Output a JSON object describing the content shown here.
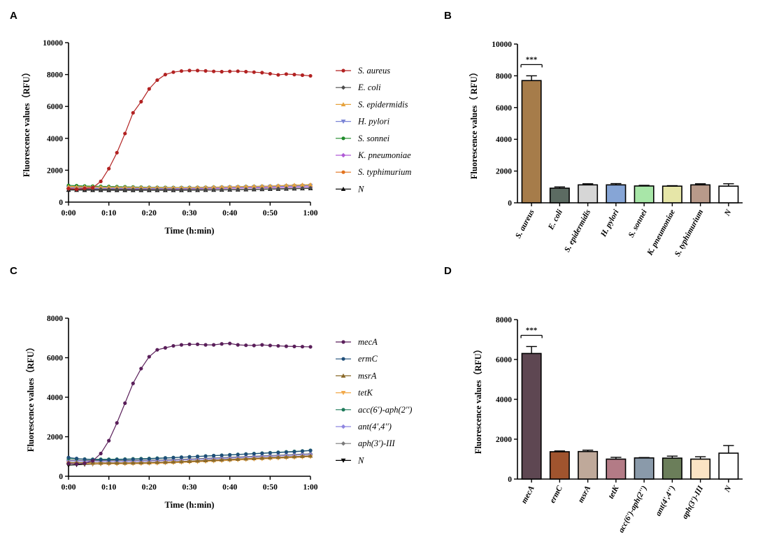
{
  "chart_data": [
    {
      "panel": "A",
      "type": "line",
      "xlabel": "Time (h:min)",
      "ylabel": "Fluorescence values（RFU）",
      "x_ticks": [
        "0:00",
        "0:10",
        "0:20",
        "0:30",
        "0:40",
        "0:50",
        "1:00"
      ],
      "xlim": [
        0,
        60
      ],
      "ylim": [
        0,
        10000
      ],
      "y_ticks": [
        0,
        2000,
        4000,
        6000,
        8000,
        10000
      ],
      "series": [
        {
          "name": "S. aureus",
          "color": "#b22222",
          "marker": "circle",
          "values": [
            850,
            800,
            860,
            900,
            1300,
            2100,
            3100,
            4300,
            5600,
            6300,
            7100,
            7650,
            8000,
            8150,
            8220,
            8250,
            8250,
            8230,
            8200,
            8180,
            8200,
            8210,
            8180,
            8150,
            8120,
            8050,
            7980,
            8030,
            8000,
            7960,
            7920
          ]
        },
        {
          "name": "E. coli",
          "color": "#4d4d4d",
          "marker": "diamond",
          "values": [
            820,
            815,
            810,
            805,
            800,
            795,
            790,
            788,
            785,
            783,
            780,
            779,
            778,
            777,
            776,
            776,
            777,
            778,
            780,
            782,
            785,
            790,
            800,
            810,
            820,
            830,
            840,
            850,
            860,
            870,
            880
          ]
        },
        {
          "name": "S. epidermidis",
          "color": "#e6a23c",
          "marker": "triangle-up",
          "values": [
            960,
            950,
            945,
            940,
            935,
            930,
            925,
            920,
            915,
            912,
            910,
            908,
            906,
            905,
            905,
            910,
            920,
            930,
            940,
            950,
            960,
            970,
            980,
            990,
            1000,
            1010,
            1030,
            1050,
            1070,
            1080,
            1090
          ]
        },
        {
          "name": "H. pylori",
          "color": "#7b84d6",
          "marker": "triangle-down",
          "values": [
            900,
            895,
            890,
            885,
            880,
            875,
            870,
            868,
            866,
            864,
            862,
            860,
            860,
            862,
            865,
            870,
            878,
            886,
            895,
            905,
            915,
            925,
            935,
            945,
            955,
            965,
            980,
            995,
            1010,
            1020,
            1030
          ]
        },
        {
          "name": "S. sonnei",
          "color": "#1f8a2a",
          "marker": "circle",
          "values": [
            1050,
            1030,
            1010,
            1000,
            990,
            980,
            970,
            960,
            950,
            940,
            930,
            925,
            920,
            918,
            918,
            920,
            925,
            930,
            938,
            946,
            955,
            965,
            975,
            985,
            995,
            1005,
            1015,
            1025,
            1035,
            1045,
            1055
          ]
        },
        {
          "name": "K. pneumoniae",
          "color": "#b05bd6",
          "marker": "diamond",
          "values": [
            870,
            865,
            860,
            855,
            850,
            845,
            840,
            836,
            833,
            830,
            828,
            826,
            825,
            826,
            828,
            832,
            838,
            845,
            852,
            860,
            868,
            876,
            885,
            894,
            903,
            912,
            922,
            932,
            942,
            952,
            960
          ]
        },
        {
          "name": "S. typhimurium",
          "color": "#e2731e",
          "marker": "circle",
          "values": [
            980,
            970,
            960,
            950,
            940,
            930,
            920,
            915,
            910,
            905,
            900,
            898,
            896,
            895,
            896,
            900,
            906,
            914,
            922,
            930,
            940,
            950,
            962,
            975,
            988,
            1000,
            1015,
            1030,
            1045,
            1060,
            1075
          ]
        },
        {
          "name": "N",
          "color": "#111111",
          "marker": "triangle-up",
          "values": [
            760,
            755,
            752,
            750,
            748,
            746,
            745,
            744,
            743,
            742,
            742,
            742,
            743,
            744,
            746,
            748,
            751,
            755,
            760,
            766,
            772,
            780,
            788,
            796,
            805,
            814,
            823,
            832,
            842,
            852,
            862
          ]
        }
      ]
    },
    {
      "panel": "B",
      "type": "bar",
      "ylabel": "Fluorescence values（ RFU）",
      "ylim": [
        0,
        10000
      ],
      "y_ticks": [
        0,
        2000,
        4000,
        6000,
        8000,
        10000
      ],
      "categories": [
        "S. aureus",
        "E. coli",
        "S. epidermidis",
        "H. pylori",
        "S. sonnei",
        "K. pneumoniae",
        "S. typhimurium",
        "N"
      ],
      "values": [
        7700,
        920,
        1130,
        1130,
        1060,
        1050,
        1130,
        1050
      ],
      "errors": [
        300,
        80,
        70,
        80,
        40,
        30,
        70,
        150
      ],
      "colors": [
        "#a67c4a",
        "#5c6b62",
        "#d6d6d6",
        "#86a5d6",
        "#a8e6a8",
        "#e6e6a8",
        "#b89a8a",
        "#ffffff"
      ],
      "significance": "***"
    },
    {
      "panel": "C",
      "type": "line",
      "xlabel": "Time (h:min)",
      "ylabel": "Fluorescence values（RFU）",
      "x_ticks": [
        "0:00",
        "0:10",
        "0:20",
        "0:30",
        "0:40",
        "0:50",
        "1:00"
      ],
      "xlim": [
        0,
        60
      ],
      "ylim": [
        0,
        8000
      ],
      "y_ticks": [
        0,
        2000,
        4000,
        6000,
        8000
      ],
      "series": [
        {
          "name": "mecA",
          "color": "#5a1f5a",
          "marker": "circle",
          "values": [
            650,
            620,
            660,
            780,
            1150,
            1800,
            2700,
            3700,
            4700,
            5450,
            6050,
            6400,
            6500,
            6600,
            6650,
            6680,
            6680,
            6650,
            6650,
            6700,
            6720,
            6650,
            6630,
            6620,
            6650,
            6620,
            6600,
            6580,
            6570,
            6560,
            6550
          ]
        },
        {
          "name": "ermC",
          "color": "#1f4e79",
          "marker": "circle",
          "values": [
            950,
            900,
            860,
            840,
            830,
            830,
            840,
            850,
            860,
            870,
            880,
            900,
            920,
            940,
            960,
            980,
            1000,
            1020,
            1040,
            1060,
            1080,
            1100,
            1120,
            1140,
            1160,
            1180,
            1200,
            1220,
            1240,
            1270,
            1300
          ]
        },
        {
          "name": "msrA",
          "color": "#8a6a2a",
          "marker": "triangle-up",
          "values": [
            700,
            690,
            685,
            680,
            678,
            676,
            676,
            678,
            682,
            688,
            695,
            705,
            718,
            732,
            748,
            765,
            782,
            800,
            818,
            836,
            854,
            872,
            890,
            908,
            926,
            944,
            962,
            980,
            998,
            1016,
            1034
          ]
        },
        {
          "name": "tetK",
          "color": "#f2a94a",
          "marker": "triangle-down",
          "values": [
            650,
            640,
            635,
            630,
            628,
            626,
            626,
            628,
            632,
            638,
            645,
            655,
            668,
            682,
            698,
            715,
            732,
            750,
            768,
            786,
            804,
            822,
            840,
            858,
            876,
            894,
            912,
            930,
            948,
            966,
            984
          ]
        },
        {
          "name": "acc(6')-aph(2'')",
          "color": "#1e7a5a",
          "marker": "circle",
          "values": [
            900,
            880,
            870,
            860,
            860,
            860,
            865,
            870,
            880,
            890,
            900,
            915,
            930,
            948,
            966,
            985,
            1005,
            1025,
            1045,
            1065,
            1085,
            1105,
            1125,
            1148,
            1170,
            1192,
            1214,
            1236,
            1258,
            1280,
            1310
          ]
        },
        {
          "name": "ant(4',4'')",
          "color": "#8f86e0",
          "marker": "diamond",
          "values": [
            780,
            770,
            760,
            755,
            752,
            750,
            750,
            752,
            756,
            762,
            770,
            780,
            792,
            806,
            820,
            836,
            852,
            868,
            885,
            902,
            920,
            938,
            956,
            974,
            992,
            1010,
            1028,
            1046,
            1064,
            1082,
            1100
          ]
        },
        {
          "name": "aph(3')-III",
          "color": "#7a7a7a",
          "marker": "diamond",
          "values": [
            820,
            810,
            800,
            795,
            792,
            790,
            790,
            792,
            796,
            802,
            810,
            820,
            832,
            846,
            860,
            876,
            892,
            908,
            925,
            942,
            960,
            978,
            996,
            1014,
            1032,
            1050,
            1068,
            1086,
            1104,
            1122,
            1140
          ]
        },
        {
          "name": "N",
          "color": "#000000",
          "marker": "triangle-down",
          "values": [
            560,
            580,
            600,
            615,
            625,
            635,
            645,
            652,
            660,
            668,
            676,
            686,
            698,
            712,
            728,
            745,
            762,
            780,
            798,
            816,
            834,
            852,
            870,
            888,
            906,
            924,
            942,
            960,
            978,
            996,
            1014
          ]
        }
      ]
    },
    {
      "panel": "D",
      "type": "bar",
      "ylabel": "Fluorescence values（RFU）",
      "ylim": [
        0,
        8000
      ],
      "y_ticks": [
        0,
        2000,
        4000,
        6000,
        8000
      ],
      "categories": [
        "mecA",
        "ermC",
        "msrA",
        "tetK",
        "acc(6')-aph(2'')",
        "ant(4',4'')",
        "aph(3')-III",
        "N"
      ],
      "values": [
        6300,
        1370,
        1380,
        1000,
        1060,
        1050,
        1000,
        1300
      ],
      "errors": [
        350,
        40,
        70,
        90,
        20,
        100,
        120,
        380
      ],
      "colors": [
        "#5e4752",
        "#a0542e",
        "#bfa99a",
        "#b37b86",
        "#8a9aaa",
        "#6b7e5a",
        "#fbe3c4",
        "#ffffff"
      ],
      "significance": "***"
    }
  ]
}
